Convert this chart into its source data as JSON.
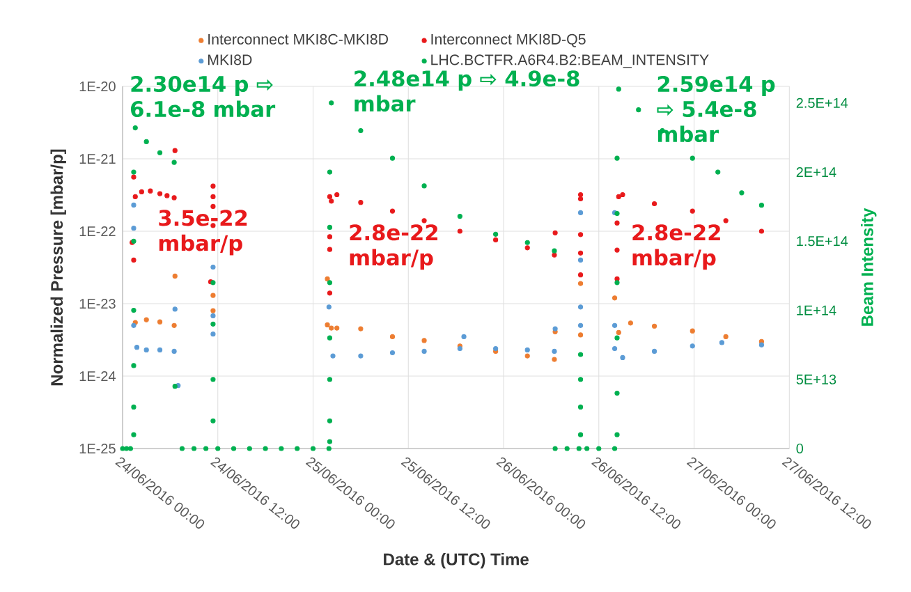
{
  "chart_data": {
    "type": "scatter",
    "xlabel": "Date & (UTC) Time",
    "ylabel": "Normalized Pressure [mbar/p]",
    "y2label": "Beam Intensity",
    "xlim": [
      "2016-06-24T00:00",
      "2016-06-27T12:00"
    ],
    "xticks": [
      {
        "value": "2016-06-24T00:00",
        "label": "24/06/2016 00:00"
      },
      {
        "value": "2016-06-24T12:00",
        "label": "24/06/2016 12:00"
      },
      {
        "value": "2016-06-25T00:00",
        "label": "25/06/2016 00:00"
      },
      {
        "value": "2016-06-25T12:00",
        "label": "25/06/2016 12:00"
      },
      {
        "value": "2016-06-26T00:00",
        "label": "26/06/2016 00:00"
      },
      {
        "value": "2016-06-26T12:00",
        "label": "26/06/2016 12:00"
      },
      {
        "value": "2016-06-27T00:00",
        "label": "27/06/2016 00:00"
      },
      {
        "value": "2016-06-27T12:00",
        "label": "27/06/2016 12:00"
      }
    ],
    "log": "y",
    "ylim": [
      1e-25,
      1e-20
    ],
    "yticks": [
      {
        "value": 1e-25,
        "label": "1E-25"
      },
      {
        "value": 1e-24,
        "label": "1E-24"
      },
      {
        "value": 1e-23,
        "label": "1E-23"
      },
      {
        "value": 1e-22,
        "label": "1E-22"
      },
      {
        "value": 1e-21,
        "label": "1E-21"
      },
      {
        "value": 1e-20,
        "label": "1E-20"
      }
    ],
    "y2lim": [
      0,
      262000000000000.0
    ],
    "y2ticks": [
      0,
      {
        "value": 50000000000000.0,
        "label": "5E+13"
      },
      {
        "value": 100000000000000.0,
        "label": "1E+14"
      },
      {
        "value": 150000000000000.0,
        "label": "1.5E+14"
      },
      {
        "value": 200000000000000.0,
        "label": "2E+14"
      },
      {
        "value": 250000000000000.0,
        "label": "2.5E+14"
      }
    ],
    "grid": true,
    "legend": "top",
    "marker": "circle",
    "series": [
      {
        "name": "Interconnect MKI8C-MKI8D",
        "color": "#ed7d31",
        "x": [
          "2016-06-24T01:36",
          "2016-06-24T03:00",
          "2016-06-24T04:42",
          "2016-06-24T06:30",
          "2016-06-24T06:36",
          "2016-06-24T11:24",
          "2016-06-24T11:24",
          "2016-06-25T01:48",
          "2016-06-25T01:48",
          "2016-06-25T02:18",
          "2016-06-25T03:00",
          "2016-06-25T06:00",
          "2016-06-25T10:00",
          "2016-06-25T14:00",
          "2016-06-25T18:30",
          "2016-06-25T23:00",
          "2016-06-26T03:00",
          "2016-06-26T06:24",
          "2016-06-26T06:30",
          "2016-06-26T09:42",
          "2016-06-26T09:42",
          "2016-06-26T14:00",
          "2016-06-26T14:30",
          "2016-06-26T16:00",
          "2016-06-26T19:00",
          "2016-06-26T23:48",
          "2016-06-27T04:00",
          "2016-06-27T08:30"
        ],
        "values": [
          5.5e-24,
          6e-24,
          5.6e-24,
          5e-24,
          2.4e-23,
          1.3e-23,
          8e-24,
          2.2e-23,
          5.1e-24,
          4.6e-24,
          4.6e-24,
          4.5e-24,
          3.5e-24,
          3.1e-24,
          2.6e-24,
          2.2e-24,
          1.9e-24,
          1.7e-24,
          4.1e-24,
          3.7e-24,
          1.9e-23,
          1.2e-23,
          4e-24,
          5.4e-24,
          4.9e-24,
          4.2e-24,
          3.5e-24,
          3e-24
        ]
      },
      {
        "name": "Interconnect MKI8D-Q5",
        "color": "#e8191b",
        "x": [
          "2016-06-24T01:24",
          "2016-06-24T01:12",
          "2016-06-24T01:24",
          "2016-06-24T01:36",
          "2016-06-24T02:24",
          "2016-06-24T03:30",
          "2016-06-24T04:42",
          "2016-06-24T05:36",
          "2016-06-24T06:30",
          "2016-06-24T06:36",
          "2016-06-24T11:24",
          "2016-06-24T11:24",
          "2016-06-24T11:24",
          "2016-06-24T11:24",
          "2016-06-24T11:06",
          "2016-06-25T02:06",
          "2016-06-25T02:06",
          "2016-06-25T02:06",
          "2016-06-25T02:06",
          "2016-06-25T02:18",
          "2016-06-25T03:00",
          "2016-06-25T06:00",
          "2016-06-25T10:00",
          "2016-06-25T14:00",
          "2016-06-25T18:30",
          "2016-06-25T23:00",
          "2016-06-26T03:00",
          "2016-06-26T06:24",
          "2016-06-26T06:30",
          "2016-06-26T09:42",
          "2016-06-26T09:42",
          "2016-06-26T09:42",
          "2016-06-26T09:42",
          "2016-06-26T09:42",
          "2016-06-26T14:18",
          "2016-06-26T14:18",
          "2016-06-26T14:18",
          "2016-06-26T14:30",
          "2016-06-26T15:00",
          "2016-06-26T19:00",
          "2016-06-26T23:48",
          "2016-06-27T04:00",
          "2016-06-27T08:30"
        ],
        "values": [
          5.6e-22,
          7e-23,
          4e-23,
          3e-22,
          3.5e-22,
          3.6e-22,
          3.3e-22,
          3.1e-22,
          2.9e-22,
          1.3e-21,
          4.2e-22,
          3e-22,
          2.2e-22,
          1.2e-22,
          2e-23,
          3e-22,
          8.4e-23,
          5.6e-23,
          1.4e-23,
          2.6e-22,
          3.2e-22,
          2.5e-22,
          1.9e-22,
          1.4e-22,
          1e-22,
          7.6e-23,
          5.9e-23,
          4.7e-23,
          9.5e-23,
          3.2e-22,
          2.8e-22,
          9e-23,
          5e-23,
          2.5e-23,
          1.3e-22,
          5.5e-23,
          2.2e-23,
          3e-22,
          3.2e-22,
          2.4e-22,
          1.9e-22,
          1.4e-22,
          1e-22
        ]
      },
      {
        "name": "MKI8D",
        "color": "#5b9bd5",
        "x": [
          "2016-06-24T01:24",
          "2016-06-24T01:24",
          "2016-06-24T01:24",
          "2016-06-24T01:48",
          "2016-06-24T03:00",
          "2016-06-24T04:42",
          "2016-06-24T06:30",
          "2016-06-24T06:36",
          "2016-06-24T07:00",
          "2016-06-24T11:24",
          "2016-06-24T11:24",
          "2016-06-24T11:24",
          "2016-06-25T02:00",
          "2016-06-25T02:30",
          "2016-06-25T06:00",
          "2016-06-25T10:00",
          "2016-06-25T14:00",
          "2016-06-25T18:30",
          "2016-06-25T19:00",
          "2016-06-25T23:00",
          "2016-06-26T03:00",
          "2016-06-26T06:24",
          "2016-06-26T06:30",
          "2016-06-26T09:42",
          "2016-06-26T09:42",
          "2016-06-26T09:42",
          "2016-06-26T09:42",
          "2016-06-26T14:00",
          "2016-06-26T14:00",
          "2016-06-26T14:00",
          "2016-06-26T15:00",
          "2016-06-26T19:00",
          "2016-06-26T23:48",
          "2016-06-27T03:30",
          "2016-06-27T08:30"
        ],
        "values": [
          2.3e-22,
          1.1e-22,
          5e-24,
          2.5e-24,
          2.3e-24,
          2.3e-24,
          2.2e-24,
          8.4e-24,
          7.4e-25,
          3.2e-23,
          6.8e-24,
          3.8e-24,
          9e-24,
          1.9e-24,
          1.9e-24,
          2.1e-24,
          2.2e-24,
          2.4e-24,
          3.5e-24,
          2.4e-24,
          2.3e-24,
          2.2e-24,
          4.5e-24,
          1.8e-22,
          4e-23,
          9e-24,
          5e-24,
          1.8e-22,
          5e-24,
          2.4e-24,
          1.8e-24,
          2.2e-24,
          2.6e-24,
          2.9e-24,
          2.7e-24
        ]
      },
      {
        "name": "LHC.BCTFR.A6R4.B2:BEAM_INTENSITY",
        "color": "#00b050",
        "axis": "y2",
        "x": [
          "2016-06-24T00:00",
          "2016-06-24T00:30",
          "2016-06-24T01:00",
          "2016-06-24T01:24",
          "2016-06-24T01:24",
          "2016-06-24T01:24",
          "2016-06-24T01:24",
          "2016-06-24T01:24",
          "2016-06-24T01:24",
          "2016-06-24T01:36",
          "2016-06-24T03:00",
          "2016-06-24T04:42",
          "2016-06-24T06:30",
          "2016-06-24T06:36",
          "2016-06-24T07:30",
          "2016-06-24T09:00",
          "2016-06-24T10:30",
          "2016-06-24T11:24",
          "2016-06-24T11:24",
          "2016-06-24T11:24",
          "2016-06-24T11:24",
          "2016-06-24T12:00",
          "2016-06-24T14:00",
          "2016-06-24T16:00",
          "2016-06-24T18:00",
          "2016-06-24T20:00",
          "2016-06-24T22:00",
          "2016-06-25T00:00",
          "2016-06-25T02:00",
          "2016-06-25T02:06",
          "2016-06-25T02:06",
          "2016-06-25T02:06",
          "2016-06-25T02:06",
          "2016-06-25T02:06",
          "2016-06-25T02:06",
          "2016-06-25T02:06",
          "2016-06-25T02:18",
          "2016-06-25T06:00",
          "2016-06-25T10:00",
          "2016-06-25T14:00",
          "2016-06-25T18:30",
          "2016-06-25T23:00",
          "2016-06-26T03:00",
          "2016-06-26T06:24",
          "2016-06-26T06:30",
          "2016-06-26T08:00",
          "2016-06-26T09:30",
          "2016-06-26T09:42",
          "2016-06-26T09:42",
          "2016-06-26T09:42",
          "2016-06-26T09:42",
          "2016-06-26T10:30",
          "2016-06-26T12:00",
          "2016-06-26T14:00",
          "2016-06-26T14:18",
          "2016-06-26T14:18",
          "2016-06-26T14:18",
          "2016-06-26T14:18",
          "2016-06-26T14:18",
          "2016-06-26T14:18",
          "2016-06-26T14:30",
          "2016-06-26T17:00",
          "2016-06-26T20:00",
          "2016-06-26T23:48",
          "2016-06-27T03:00",
          "2016-06-27T06:00",
          "2016-06-27T08:30"
        ],
        "values": [
          0,
          0,
          0,
          10000000000000.0,
          30000000000000.0,
          60000000000000.0,
          100000000000000.0,
          150000000000000.0,
          200000000000000.0,
          232000000000000.0,
          222000000000000.0,
          214000000000000.0,
          207000000000000.0,
          45000000000000.0,
          0,
          0,
          0,
          20000000000000.0,
          50000000000000.0,
          90000000000000.0,
          120000000000000.0,
          0,
          0,
          0,
          0,
          0,
          0,
          0,
          0,
          5000000000000.0,
          20000000000000.0,
          50000000000000.0,
          80000000000000.0,
          120000000000000.0,
          160000000000000.0,
          200000000000000.0,
          250000000000000.0,
          230000000000000.0,
          210000000000000.0,
          190000000000000.0,
          168000000000000.0,
          155000000000000.0,
          149000000000000.0,
          143000000000000.0,
          0,
          0,
          0,
          10000000000000.0,
          30000000000000.0,
          50000000000000.0,
          68000000000000.0,
          0,
          0,
          0,
          10000000000000.0,
          40000000000000.0,
          80000000000000.0,
          120000000000000.0,
          170000000000000.0,
          210000000000000.0,
          260000000000000.0,
          245000000000000.0,
          230000000000000.0,
          210000000000000.0,
          200000000000000.0,
          185000000000000.0,
          176000000000000.0
        ]
      }
    ],
    "annotations": [
      "2.30e14 p ⇨ 6.1e-8 mbar",
      "3.5e-22 mbar/p",
      "2.48e14 p ⇨ 4.9e-8 mbar",
      "2.8e-22 mbar/p",
      "2.59e14 p ⇨ 5.4e-8 mbar",
      "2.8e-22 mbar/p"
    ]
  }
}
